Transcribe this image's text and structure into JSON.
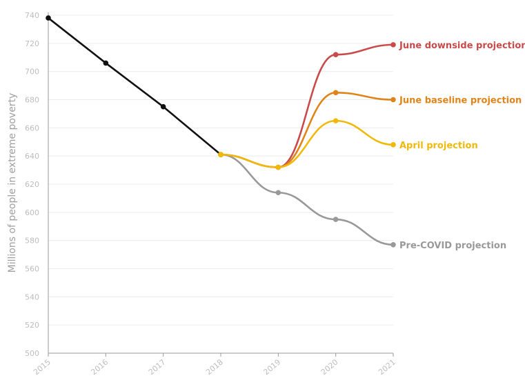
{
  "chart_data": {
    "type": "line",
    "ylabel": "Millions of people in extreme poverty",
    "ylim": [
      500,
      740
    ],
    "yticks": [
      500,
      520,
      540,
      560,
      580,
      600,
      620,
      640,
      660,
      680,
      700,
      720,
      740
    ],
    "x": [
      "2015",
      "2016",
      "2017",
      "2018",
      "2019",
      "2020",
      "2021"
    ],
    "grid": true,
    "series": [
      {
        "name": "Pre-COVID projection",
        "color": "#999999",
        "points": [
          [
            "2018",
            641
          ],
          [
            "2019",
            614
          ],
          [
            "2020",
            595
          ],
          [
            "2021",
            577
          ]
        ]
      },
      {
        "name": "June downside projection",
        "color": "#c94a4a",
        "points": [
          [
            "2018",
            641
          ],
          [
            "2019",
            632
          ],
          [
            "2020",
            712
          ],
          [
            "2021",
            719
          ]
        ]
      },
      {
        "name": "June baseline projection",
        "color": "#e08419",
        "points": [
          [
            "2018",
            641
          ],
          [
            "2019",
            632
          ],
          [
            "2020",
            685
          ],
          [
            "2021",
            680
          ]
        ]
      },
      {
        "name": "April projection",
        "color": "#f0b90a",
        "points": [
          [
            "2018",
            641
          ],
          [
            "2019",
            632
          ],
          [
            "2020",
            665
          ],
          [
            "2021",
            648
          ]
        ]
      },
      {
        "name": "",
        "color": "#111111",
        "points": [
          [
            "2015",
            738
          ],
          [
            "2016",
            706
          ],
          [
            "2017",
            675
          ],
          [
            "2018",
            641
          ]
        ]
      }
    ]
  }
}
